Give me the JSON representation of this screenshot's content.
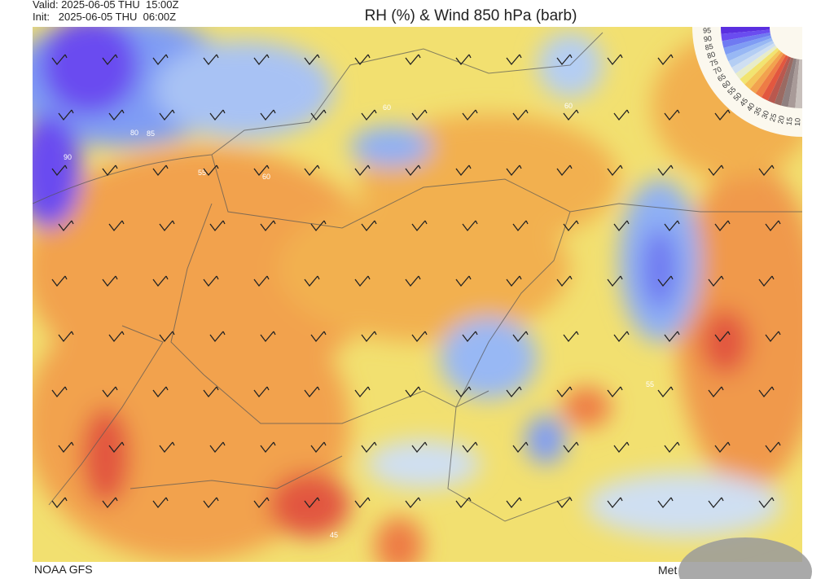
{
  "header": {
    "valid": "Valid: 2025-06-05 THU  15:00Z",
    "init": "Init:   2025-06-05 THU  06:00Z",
    "title": "RH (%) & Wind 850 hPa (barb)"
  },
  "colorbar": {
    "levels": [
      {
        "label": "95",
        "color": "#5a2fe0"
      },
      {
        "label": "90",
        "color": "#6a4cf0"
      },
      {
        "label": "85",
        "color": "#6f7af2"
      },
      {
        "label": "80",
        "color": "#7f9cf4"
      },
      {
        "label": "75",
        "color": "#98b8f4"
      },
      {
        "label": "70",
        "color": "#b4cef4"
      },
      {
        "label": "65",
        "color": "#cfdff2"
      },
      {
        "label": "60",
        "color": "#e8ecc8"
      },
      {
        "label": "55",
        "color": "#f2e470"
      },
      {
        "label": "50",
        "color": "#f4c65a"
      },
      {
        "label": "45",
        "color": "#f2a24e"
      },
      {
        "label": "40",
        "color": "#ee7c45"
      },
      {
        "label": "35",
        "color": "#e2573f"
      },
      {
        "label": "30",
        "color": "#b9584e"
      },
      {
        "label": "25",
        "color": "#9a6a62"
      },
      {
        "label": "20",
        "color": "#8f8080"
      },
      {
        "label": "15",
        "color": "#a89a98"
      },
      {
        "label": "10",
        "color": "#c8c0bc"
      }
    ]
  },
  "contour_labels": [
    "60",
    "60",
    "80",
    "85",
    "90",
    "55",
    "60",
    "55",
    "45"
  ],
  "footer": {
    "source": "NOAA GFS",
    "brand": "Met"
  }
}
